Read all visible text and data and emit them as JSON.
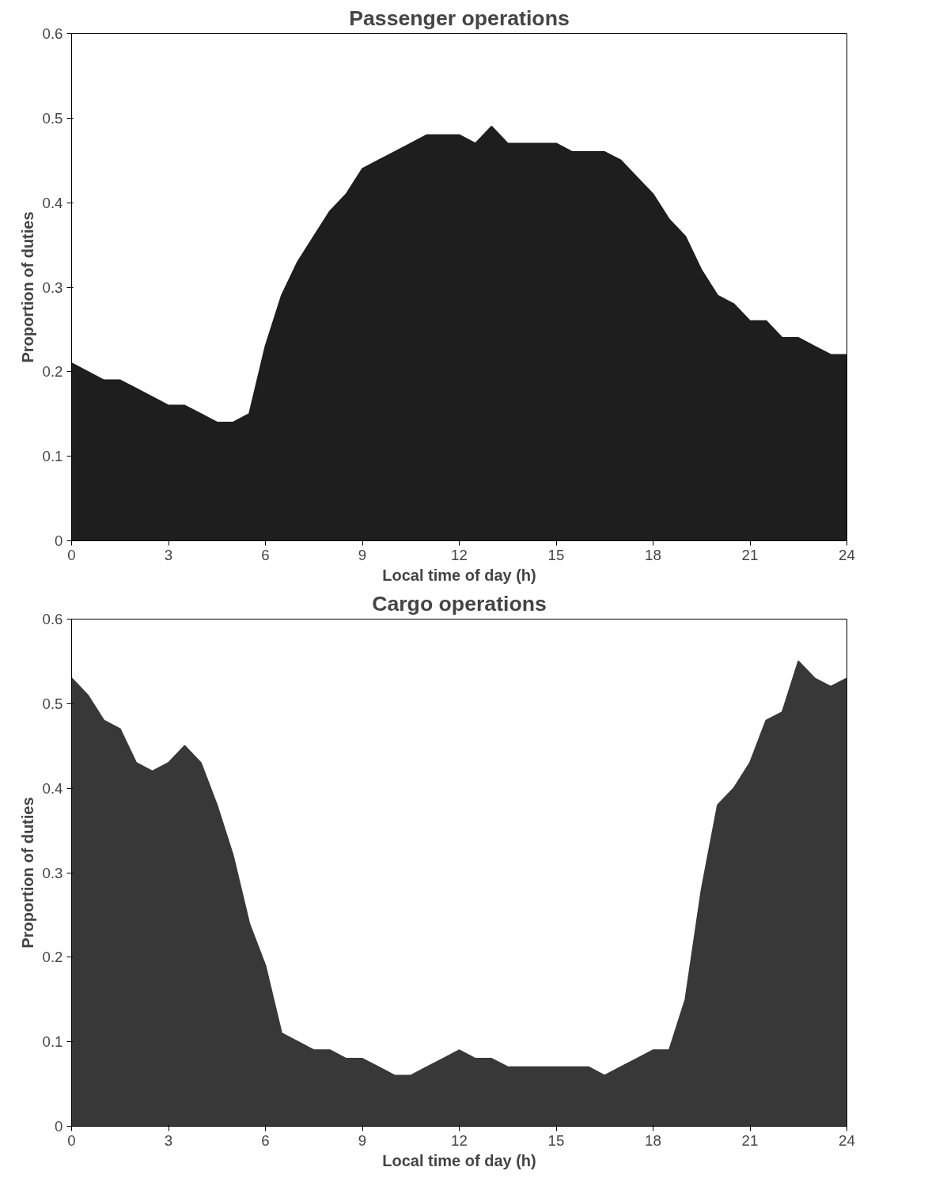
{
  "chart_data": [
    {
      "type": "area",
      "title": "Passenger operations",
      "xlabel": "Local time of day (h)",
      "ylabel": "Proportion of duties",
      "color": "#1e1e1e",
      "grid": false,
      "x": [
        0,
        0.5,
        1,
        1.5,
        2,
        2.5,
        3,
        3.5,
        4,
        4.5,
        5,
        5.5,
        6,
        6.5,
        7,
        7.5,
        8,
        8.5,
        9,
        9.5,
        10,
        10.5,
        11,
        11.5,
        12,
        12.5,
        13,
        13.5,
        14,
        14.5,
        15,
        15.5,
        16,
        16.5,
        17,
        17.5,
        18,
        18.5,
        19,
        19.5,
        20,
        20.5,
        21,
        21.5,
        22,
        22.5,
        23,
        23.5,
        24
      ],
      "values": [
        0.21,
        0.2,
        0.19,
        0.19,
        0.18,
        0.17,
        0.16,
        0.16,
        0.15,
        0.14,
        0.14,
        0.15,
        0.23,
        0.29,
        0.33,
        0.36,
        0.39,
        0.41,
        0.44,
        0.45,
        0.46,
        0.47,
        0.48,
        0.48,
        0.48,
        0.47,
        0.49,
        0.47,
        0.47,
        0.47,
        0.47,
        0.46,
        0.46,
        0.46,
        0.45,
        0.43,
        0.41,
        0.38,
        0.36,
        0.32,
        0.29,
        0.28,
        0.26,
        0.26,
        0.24,
        0.24,
        0.23,
        0.22,
        0.22
      ],
      "xlim": [
        0,
        24
      ],
      "ylim": [
        0,
        0.6
      ],
      "xticks": [
        0,
        3,
        6,
        9,
        12,
        15,
        18,
        21,
        24
      ],
      "yticks": [
        0,
        0.1,
        0.2,
        0.3,
        0.4,
        0.5,
        0.6
      ]
    },
    {
      "type": "area",
      "title": "Cargo operations",
      "xlabel": "Local time of day (h)",
      "ylabel": "Proportion of duties",
      "color": "#383838",
      "grid": false,
      "x": [
        0,
        0.5,
        1,
        1.5,
        2,
        2.5,
        3,
        3.5,
        4,
        4.5,
        5,
        5.5,
        6,
        6.5,
        7,
        7.5,
        8,
        8.5,
        9,
        9.5,
        10,
        10.5,
        11,
        11.5,
        12,
        12.5,
        13,
        13.5,
        14,
        14.5,
        15,
        15.5,
        16,
        16.5,
        17,
        17.5,
        18,
        18.5,
        19,
        19.5,
        20,
        20.5,
        21,
        21.5,
        22,
        22.5,
        23,
        23.5,
        24
      ],
      "values": [
        0.53,
        0.51,
        0.48,
        0.47,
        0.43,
        0.42,
        0.43,
        0.45,
        0.43,
        0.38,
        0.32,
        0.24,
        0.19,
        0.11,
        0.1,
        0.09,
        0.09,
        0.08,
        0.08,
        0.07,
        0.06,
        0.06,
        0.07,
        0.08,
        0.09,
        0.08,
        0.08,
        0.07,
        0.07,
        0.07,
        0.07,
        0.07,
        0.07,
        0.06,
        0.07,
        0.08,
        0.09,
        0.09,
        0.15,
        0.28,
        0.38,
        0.4,
        0.43,
        0.48,
        0.49,
        0.55,
        0.53,
        0.52,
        0.53
      ],
      "xlim": [
        0,
        24
      ],
      "ylim": [
        0,
        0.6
      ],
      "xticks": [
        0,
        3,
        6,
        9,
        12,
        15,
        18,
        21,
        24
      ],
      "yticks": [
        0,
        0.1,
        0.2,
        0.3,
        0.4,
        0.5,
        0.6
      ]
    }
  ]
}
